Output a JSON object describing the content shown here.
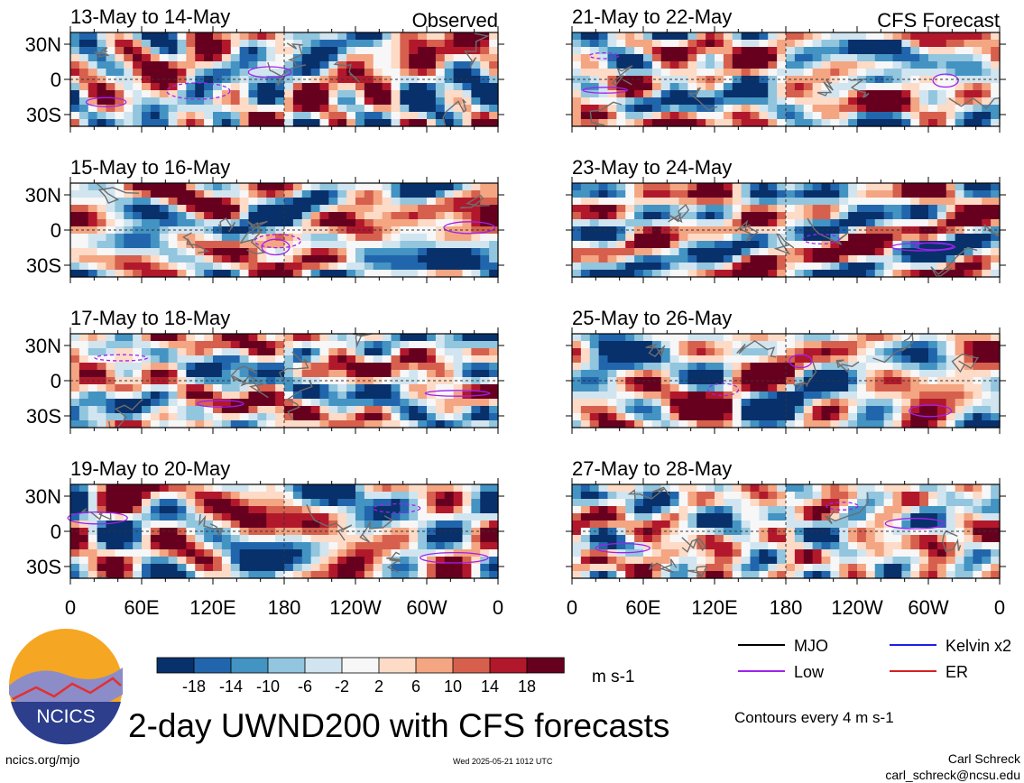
{
  "chart_data": {
    "type": "heatmap",
    "title": "2-day UWND200 with CFS forecasts",
    "variable": "UWND200",
    "units": "m s-1",
    "lat_range": [
      -40,
      40
    ],
    "lon_range": [
      0,
      360
    ],
    "lat_ticks": [
      "30N",
      "0",
      "30S"
    ],
    "lon_ticks": [
      "0",
      "60E",
      "120E",
      "180",
      "120W",
      "60W",
      "0"
    ],
    "colorbar": {
      "levels": [
        "-18",
        "-14",
        "-10",
        "-6",
        "-2",
        "2",
        "6",
        "10",
        "14",
        "18"
      ],
      "colors": [
        "#08306b",
        "#2166ac",
        "#4393c3",
        "#92c5de",
        "#d1e5f0",
        "#f7f7f7",
        "#fddbc7",
        "#f4a582",
        "#d6604d",
        "#b2182b",
        "#67001f"
      ]
    },
    "contour_note": "Contours every 4 m s-1",
    "legend": [
      {
        "label": "MJO",
        "color": "#000000"
      },
      {
        "label": "Kelvin x2",
        "color": "#1f1fe6"
      },
      {
        "label": "Low",
        "color": "#a020f0"
      },
      {
        "label": "ER",
        "color": "#d62020"
      }
    ],
    "panels": [
      {
        "period": "13-May to 14-May",
        "tag": "Observed",
        "column": "left",
        "row": 0,
        "seed": 11
      },
      {
        "period": "15-May to 16-May",
        "tag": "",
        "column": "left",
        "row": 1,
        "seed": 23
      },
      {
        "period": "17-May to 18-May",
        "tag": "",
        "column": "left",
        "row": 2,
        "seed": 37
      },
      {
        "period": "19-May to 20-May",
        "tag": "",
        "column": "left",
        "row": 3,
        "seed": 41
      },
      {
        "period": "21-May to 22-May",
        "tag": "CFS Forecast",
        "column": "right",
        "row": 0,
        "seed": 53
      },
      {
        "period": "23-May to 24-May",
        "tag": "",
        "column": "right",
        "row": 1,
        "seed": 67
      },
      {
        "period": "25-May to 26-May",
        "tag": "",
        "column": "right",
        "row": 2,
        "seed": 71
      },
      {
        "period": "27-May to 28-May",
        "tag": "",
        "column": "right",
        "row": 3,
        "seed": 89
      }
    ]
  },
  "logo": {
    "text": "NCICS"
  },
  "footer": {
    "left": "ncics.org/mjo",
    "timestamp": "Wed 2025-05-21 1012 UTC",
    "author": "Carl Schreck",
    "email": "carl_schreck@ncsu.edu"
  }
}
